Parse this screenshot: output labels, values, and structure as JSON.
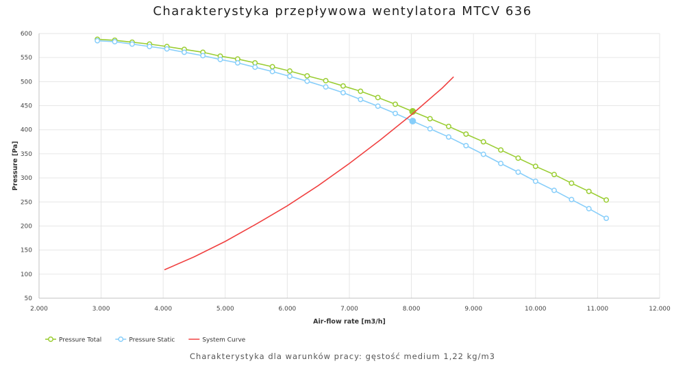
{
  "title": "Charakterystyka przepływowa wentylatora MTCV 636",
  "subtitle": "Charakterystyka dla warunków pracy: gęstość medium 1,22 kg/m3",
  "chart_data": {
    "type": "line",
    "title": "Charakterystyka przepływowa wentylatora MTCV 636",
    "xlabel": "Air-flow rate [m3/h]",
    "ylabel": "Pressure [Pa]",
    "xlim": [
      2000,
      12000
    ],
    "ylim": [
      50,
      600
    ],
    "x_ticks": [
      2000,
      3000,
      4000,
      5000,
      6000,
      7000,
      8000,
      9000,
      10000,
      11000,
      12000
    ],
    "x_tick_labels": [
      "2.000",
      "3.000",
      "4.000",
      "5.000",
      "6.000",
      "7.000",
      "8.000",
      "9.000",
      "10.000",
      "11.000",
      "12.000"
    ],
    "y_ticks": [
      50,
      100,
      150,
      200,
      250,
      300,
      350,
      400,
      450,
      500,
      550,
      600
    ],
    "y_tick_labels": [
      "50",
      "100",
      "150",
      "200",
      "250",
      "300",
      "350",
      "400",
      "450",
      "500",
      "550",
      "600"
    ],
    "grid": true,
    "legend_position": "bottom-left",
    "series": [
      {
        "name": "Pressure Total",
        "color": "#9acd32",
        "marker": "circle",
        "x": [
          2940,
          3220,
          3500,
          3780,
          4060,
          4340,
          4640,
          4920,
          5200,
          5480,
          5760,
          6040,
          6320,
          6620,
          6900,
          7180,
          7460,
          7740,
          8020,
          8300,
          8600,
          8880,
          9160,
          9440,
          9720,
          10000,
          10300,
          10580,
          10860,
          11140
        ],
        "y": [
          588,
          586,
          582,
          578,
          573,
          567,
          561,
          553,
          547,
          539,
          531,
          522,
          512,
          502,
          491,
          480,
          467,
          453,
          438,
          423,
          407,
          391,
          375,
          358,
          341,
          324,
          307,
          289,
          272,
          254
        ],
        "highlight_index": 18
      },
      {
        "name": "Pressure Static",
        "color": "#87cefa",
        "marker": "circle",
        "x": [
          2940,
          3220,
          3500,
          3780,
          4060,
          4340,
          4640,
          4920,
          5200,
          5480,
          5760,
          6040,
          6320,
          6620,
          6900,
          7180,
          7460,
          7740,
          8020,
          8300,
          8600,
          8880,
          9160,
          9440,
          9720,
          10000,
          10300,
          10580,
          10860,
          11140
        ],
        "y": [
          585,
          583,
          578,
          573,
          568,
          561,
          554,
          546,
          539,
          530,
          521,
          511,
          501,
          489,
          477,
          463,
          449,
          434,
          418,
          402,
          385,
          367,
          349,
          330,
          312,
          293,
          274,
          255,
          236,
          216
        ],
        "highlight_index": 18
      },
      {
        "name": "System Curve",
        "color": "#f04040",
        "marker": "none",
        "x": [
          4020,
          4500,
          5000,
          5500,
          6000,
          6500,
          7000,
          7500,
          8000,
          8500,
          8680
        ],
        "y": [
          109,
          136,
          168,
          204,
          242,
          284,
          330,
          379,
          431,
          487,
          510
        ]
      }
    ]
  }
}
